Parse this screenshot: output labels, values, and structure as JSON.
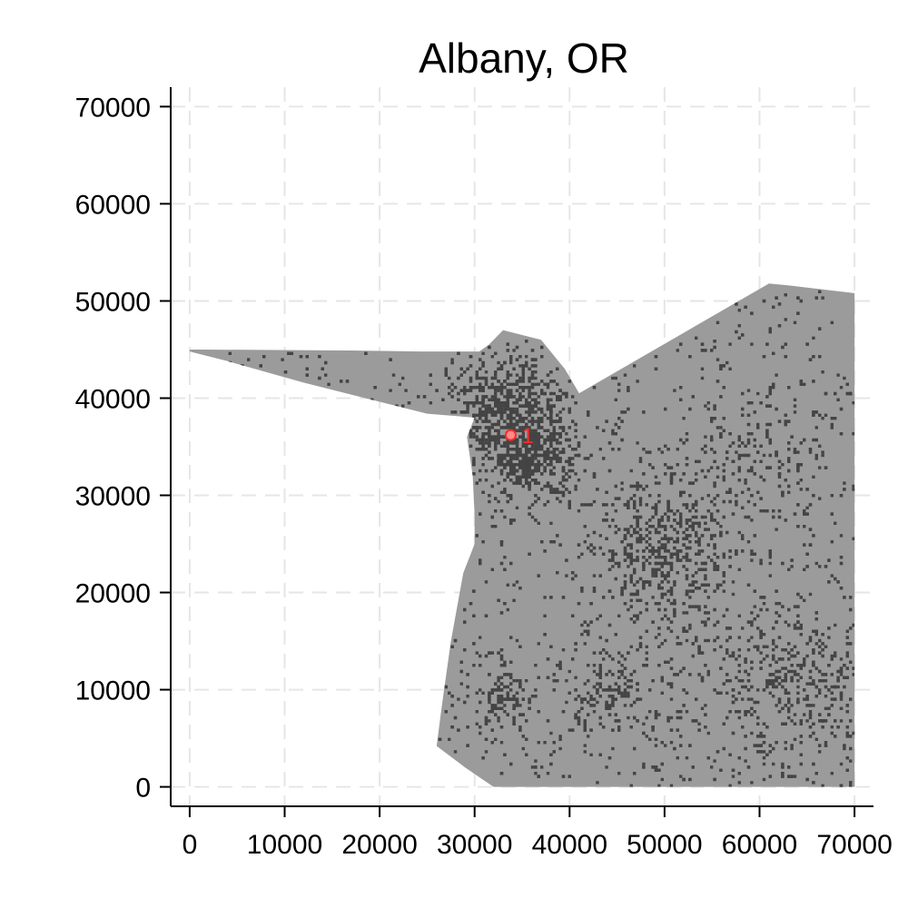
{
  "chart_data": {
    "type": "scatter",
    "title": "Albany, OR",
    "xlabel": "",
    "ylabel": "",
    "xlim": [
      -2000,
      72000
    ],
    "ylim": [
      -2000,
      72000
    ],
    "x_ticks": [
      0,
      10000,
      20000,
      30000,
      40000,
      50000,
      60000,
      70000
    ],
    "y_ticks": [
      0,
      10000,
      20000,
      30000,
      40000,
      50000,
      60000,
      70000
    ],
    "x_tick_labels": [
      "0",
      "10000",
      "20000",
      "30000",
      "40000",
      "50000",
      "60000",
      "70000"
    ],
    "y_tick_labels": [
      "0",
      "10000",
      "20000",
      "30000",
      "40000",
      "50000",
      "60000",
      "70000"
    ],
    "grid": true,
    "region_outline": [
      [
        0,
        45000
      ],
      [
        1500,
        45000
      ],
      [
        17000,
        44900
      ],
      [
        24500,
        44800
      ],
      [
        30500,
        44800
      ],
      [
        31500,
        45500
      ],
      [
        33000,
        47000
      ],
      [
        37000,
        46000
      ],
      [
        39500,
        43000
      ],
      [
        41000,
        40500
      ],
      [
        61000,
        51800
      ],
      [
        63000,
        51600
      ],
      [
        70000,
        50800
      ],
      [
        70000,
        0
      ],
      [
        55000,
        0
      ],
      [
        32000,
        0
      ],
      [
        29000,
        2000
      ],
      [
        26000,
        4200
      ],
      [
        26500,
        8000
      ],
      [
        27500,
        15000
      ],
      [
        28800,
        22000
      ],
      [
        30000,
        25000
      ],
      [
        30000,
        28000
      ],
      [
        29800,
        32000
      ],
      [
        29200,
        36000
      ],
      [
        30000,
        38000
      ],
      [
        25000,
        38400
      ],
      [
        12000,
        41600
      ],
      [
        4000,
        43800
      ],
      [
        0,
        44800
      ]
    ],
    "dense_clusters": [
      {
        "x": 33500,
        "y": 38500,
        "spread": 3500,
        "weight": 0.14
      },
      {
        "x": 35500,
        "y": 34500,
        "spread": 2500,
        "weight": 0.11
      },
      {
        "x": 49500,
        "y": 25000,
        "spread": 3500,
        "weight": 0.1
      },
      {
        "x": 63500,
        "y": 10500,
        "spread": 3800,
        "weight": 0.08
      },
      {
        "x": 43500,
        "y": 9500,
        "spread": 2000,
        "weight": 0.03
      },
      {
        "x": 33000,
        "y": 9000,
        "spread": 1500,
        "weight": 0.02
      },
      {
        "x": 60000,
        "y": 33000,
        "spread": 4000,
        "weight": 0.04
      },
      {
        "x": 50000,
        "y": 15000,
        "spread": 6000,
        "weight": 0.05
      }
    ],
    "highlight_points": [
      {
        "label": "1",
        "x": 33800,
        "y": 36200
      }
    ],
    "colors": {
      "region_fill": "#9b9b9b",
      "points": "#444444",
      "highlight": "#ff2a2a",
      "grid": "#e6e6e6"
    }
  }
}
